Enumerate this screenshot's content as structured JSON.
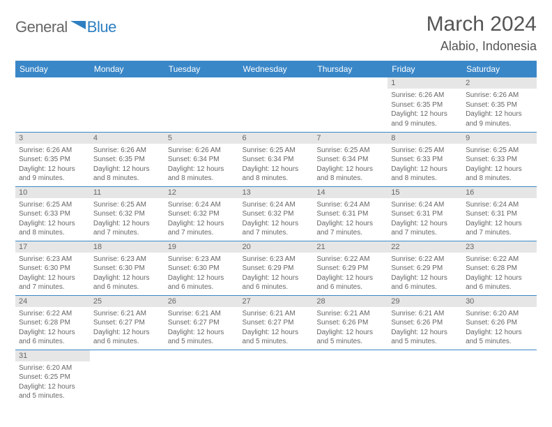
{
  "logo": {
    "main": "General",
    "sub": "Blue"
  },
  "title": "March 2024",
  "location": "Alabio, Indonesia",
  "colors": {
    "header_bg": "#3a87c8",
    "header_text": "#ffffff",
    "daynum_bg": "#e6e6e6",
    "text": "#666666",
    "rule": "#3a87c8",
    "logo_blue": "#2d7fc1"
  },
  "weekdays": [
    "Sunday",
    "Monday",
    "Tuesday",
    "Wednesday",
    "Thursday",
    "Friday",
    "Saturday"
  ],
  "weeks": [
    [
      null,
      null,
      null,
      null,
      null,
      {
        "n": "1",
        "sr": "Sunrise: 6:26 AM",
        "ss": "Sunset: 6:35 PM",
        "d1": "Daylight: 12 hours",
        "d2": "and 9 minutes."
      },
      {
        "n": "2",
        "sr": "Sunrise: 6:26 AM",
        "ss": "Sunset: 6:35 PM",
        "d1": "Daylight: 12 hours",
        "d2": "and 9 minutes."
      }
    ],
    [
      {
        "n": "3",
        "sr": "Sunrise: 6:26 AM",
        "ss": "Sunset: 6:35 PM",
        "d1": "Daylight: 12 hours",
        "d2": "and 9 minutes."
      },
      {
        "n": "4",
        "sr": "Sunrise: 6:26 AM",
        "ss": "Sunset: 6:35 PM",
        "d1": "Daylight: 12 hours",
        "d2": "and 8 minutes."
      },
      {
        "n": "5",
        "sr": "Sunrise: 6:26 AM",
        "ss": "Sunset: 6:34 PM",
        "d1": "Daylight: 12 hours",
        "d2": "and 8 minutes."
      },
      {
        "n": "6",
        "sr": "Sunrise: 6:25 AM",
        "ss": "Sunset: 6:34 PM",
        "d1": "Daylight: 12 hours",
        "d2": "and 8 minutes."
      },
      {
        "n": "7",
        "sr": "Sunrise: 6:25 AM",
        "ss": "Sunset: 6:34 PM",
        "d1": "Daylight: 12 hours",
        "d2": "and 8 minutes."
      },
      {
        "n": "8",
        "sr": "Sunrise: 6:25 AM",
        "ss": "Sunset: 6:33 PM",
        "d1": "Daylight: 12 hours",
        "d2": "and 8 minutes."
      },
      {
        "n": "9",
        "sr": "Sunrise: 6:25 AM",
        "ss": "Sunset: 6:33 PM",
        "d1": "Daylight: 12 hours",
        "d2": "and 8 minutes."
      }
    ],
    [
      {
        "n": "10",
        "sr": "Sunrise: 6:25 AM",
        "ss": "Sunset: 6:33 PM",
        "d1": "Daylight: 12 hours",
        "d2": "and 8 minutes."
      },
      {
        "n": "11",
        "sr": "Sunrise: 6:25 AM",
        "ss": "Sunset: 6:32 PM",
        "d1": "Daylight: 12 hours",
        "d2": "and 7 minutes."
      },
      {
        "n": "12",
        "sr": "Sunrise: 6:24 AM",
        "ss": "Sunset: 6:32 PM",
        "d1": "Daylight: 12 hours",
        "d2": "and 7 minutes."
      },
      {
        "n": "13",
        "sr": "Sunrise: 6:24 AM",
        "ss": "Sunset: 6:32 PM",
        "d1": "Daylight: 12 hours",
        "d2": "and 7 minutes."
      },
      {
        "n": "14",
        "sr": "Sunrise: 6:24 AM",
        "ss": "Sunset: 6:31 PM",
        "d1": "Daylight: 12 hours",
        "d2": "and 7 minutes."
      },
      {
        "n": "15",
        "sr": "Sunrise: 6:24 AM",
        "ss": "Sunset: 6:31 PM",
        "d1": "Daylight: 12 hours",
        "d2": "and 7 minutes."
      },
      {
        "n": "16",
        "sr": "Sunrise: 6:24 AM",
        "ss": "Sunset: 6:31 PM",
        "d1": "Daylight: 12 hours",
        "d2": "and 7 minutes."
      }
    ],
    [
      {
        "n": "17",
        "sr": "Sunrise: 6:23 AM",
        "ss": "Sunset: 6:30 PM",
        "d1": "Daylight: 12 hours",
        "d2": "and 7 minutes."
      },
      {
        "n": "18",
        "sr": "Sunrise: 6:23 AM",
        "ss": "Sunset: 6:30 PM",
        "d1": "Daylight: 12 hours",
        "d2": "and 6 minutes."
      },
      {
        "n": "19",
        "sr": "Sunrise: 6:23 AM",
        "ss": "Sunset: 6:30 PM",
        "d1": "Daylight: 12 hours",
        "d2": "and 6 minutes."
      },
      {
        "n": "20",
        "sr": "Sunrise: 6:23 AM",
        "ss": "Sunset: 6:29 PM",
        "d1": "Daylight: 12 hours",
        "d2": "and 6 minutes."
      },
      {
        "n": "21",
        "sr": "Sunrise: 6:22 AM",
        "ss": "Sunset: 6:29 PM",
        "d1": "Daylight: 12 hours",
        "d2": "and 6 minutes."
      },
      {
        "n": "22",
        "sr": "Sunrise: 6:22 AM",
        "ss": "Sunset: 6:29 PM",
        "d1": "Daylight: 12 hours",
        "d2": "and 6 minutes."
      },
      {
        "n": "23",
        "sr": "Sunrise: 6:22 AM",
        "ss": "Sunset: 6:28 PM",
        "d1": "Daylight: 12 hours",
        "d2": "and 6 minutes."
      }
    ],
    [
      {
        "n": "24",
        "sr": "Sunrise: 6:22 AM",
        "ss": "Sunset: 6:28 PM",
        "d1": "Daylight: 12 hours",
        "d2": "and 6 minutes."
      },
      {
        "n": "25",
        "sr": "Sunrise: 6:21 AM",
        "ss": "Sunset: 6:27 PM",
        "d1": "Daylight: 12 hours",
        "d2": "and 6 minutes."
      },
      {
        "n": "26",
        "sr": "Sunrise: 6:21 AM",
        "ss": "Sunset: 6:27 PM",
        "d1": "Daylight: 12 hours",
        "d2": "and 5 minutes."
      },
      {
        "n": "27",
        "sr": "Sunrise: 6:21 AM",
        "ss": "Sunset: 6:27 PM",
        "d1": "Daylight: 12 hours",
        "d2": "and 5 minutes."
      },
      {
        "n": "28",
        "sr": "Sunrise: 6:21 AM",
        "ss": "Sunset: 6:26 PM",
        "d1": "Daylight: 12 hours",
        "d2": "and 5 minutes."
      },
      {
        "n": "29",
        "sr": "Sunrise: 6:21 AM",
        "ss": "Sunset: 6:26 PM",
        "d1": "Daylight: 12 hours",
        "d2": "and 5 minutes."
      },
      {
        "n": "30",
        "sr": "Sunrise: 6:20 AM",
        "ss": "Sunset: 6:26 PM",
        "d1": "Daylight: 12 hours",
        "d2": "and 5 minutes."
      }
    ],
    [
      {
        "n": "31",
        "sr": "Sunrise: 6:20 AM",
        "ss": "Sunset: 6:25 PM",
        "d1": "Daylight: 12 hours",
        "d2": "and 5 minutes."
      },
      null,
      null,
      null,
      null,
      null,
      null
    ]
  ]
}
